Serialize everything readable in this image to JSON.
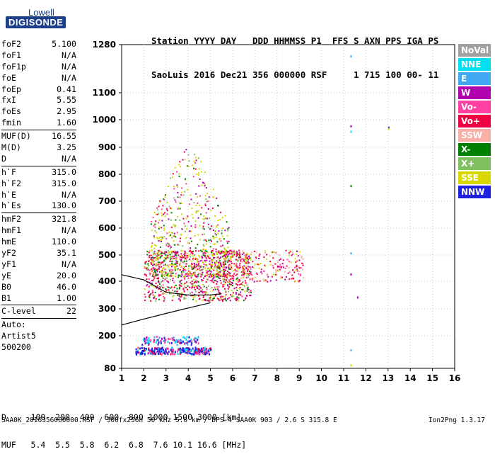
{
  "logo": {
    "line1": "Lowell",
    "line2": "DIGISONDE"
  },
  "header": {
    "line1": "Station YYYY DAY   DDD HHMMSS P1  FFS S AXN PPS IGA PS",
    "line2": "SaoLuis 2016 Dec21 356 000000 RSF     1 715 100 00- 11"
  },
  "params": {
    "group1": [
      {
        "k": "foF2",
        "v": "5.100"
      },
      {
        "k": "foF1",
        "v": "N/A"
      },
      {
        "k": "foF1p",
        "v": "N/A"
      },
      {
        "k": "foE",
        "v": "N/A"
      },
      {
        "k": "foEp",
        "v": "0.41"
      },
      {
        "k": "fxI",
        "v": "5.55"
      },
      {
        "k": "foEs",
        "v": "2.95"
      },
      {
        "k": "fmin",
        "v": "1.60"
      }
    ],
    "group2": [
      {
        "k": "MUF(D)",
        "v": "16.55"
      },
      {
        "k": "M(D)",
        "v": "3.25"
      },
      {
        "k": "D",
        "v": "N/A"
      }
    ],
    "group3": [
      {
        "k": "h`F",
        "v": "315.0"
      },
      {
        "k": "h`F2",
        "v": "315.0"
      },
      {
        "k": "h`E",
        "v": "N/A"
      },
      {
        "k": "h`Es",
        "v": "130.0"
      }
    ],
    "group4": [
      {
        "k": "hmF2",
        "v": "321.8"
      },
      {
        "k": "hmF1",
        "v": "N/A"
      },
      {
        "k": "hmE",
        "v": "110.0"
      },
      {
        "k": "yF2",
        "v": "35.1"
      },
      {
        "k": "yF1",
        "v": "N/A"
      },
      {
        "k": "yE",
        "v": "20.0"
      },
      {
        "k": "B0",
        "v": "46.0"
      },
      {
        "k": "B1",
        "v": "1.00"
      }
    ],
    "group5": [
      {
        "k": "C-level",
        "v": "22"
      }
    ],
    "group6": [
      "Auto:",
      "Artist5",
      "500200"
    ]
  },
  "legend": [
    {
      "label": "NoVal",
      "color": "#a0a0a0"
    },
    {
      "label": "NNE",
      "color": "#00e0f0"
    },
    {
      "label": "E",
      "color": "#40a8f0"
    },
    {
      "label": "W",
      "color": "#b000b0"
    },
    {
      "label": "Vo-",
      "color": "#ff40a0"
    },
    {
      "label": "Vo+",
      "color": "#f00040"
    },
    {
      "label": "SSW",
      "color": "#f8b0a8"
    },
    {
      "label": "X-",
      "color": "#008000"
    },
    {
      "label": "X+",
      "color": "#80c060"
    },
    {
      "label": "SSE",
      "color": "#d8d800"
    },
    {
      "label": "NNW",
      "color": "#2020e0"
    }
  ],
  "footer": {
    "line1": "D     100  200  400  600  800 1000 1500 3000 [km]",
    "line2": "MUF   5.4  5.5  5.8  6.2  6.8  7.6 10.1 16.6 [MHz]",
    "source": "SAA0K_2016356000000.RSF / 300fx256h 50 kHz 5.0 km / DPS-4 SAA0K 903 / 2.6 S 315.8 E",
    "version": "Ion2Png 1.3.17"
  },
  "chart_data": {
    "type": "scatter",
    "xlim": [
      1,
      16
    ],
    "x_ticks": [
      1,
      2,
      3,
      4,
      5,
      6,
      7,
      8,
      9,
      10,
      11,
      12,
      13,
      14,
      15,
      16
    ],
    "ylim": [
      80,
      1300
    ],
    "y_ticks": [
      80,
      200,
      300,
      400,
      500,
      600,
      700,
      800,
      900,
      1000,
      1100,
      1280
    ],
    "grid": "dotted",
    "clusters": [
      {
        "name": "Es-echoes",
        "color": "#2020e0",
        "x_range": [
          1.6,
          5.0
        ],
        "y_range": [
          135,
          160
        ]
      },
      {
        "name": "Es-echoes-upper",
        "color": "#b000b0",
        "x_range": [
          1.9,
          4.5
        ],
        "y_range": [
          170,
          200
        ]
      },
      {
        "name": "F-O-trace",
        "color": "#f00040",
        "x_range": [
          2.0,
          6.8
        ],
        "y_range": [
          330,
          520
        ]
      },
      {
        "name": "F-spread",
        "color": "#d8d800",
        "x_range": [
          2.3,
          5.8
        ],
        "y_range": [
          420,
          950
        ]
      },
      {
        "name": "F-X-trace",
        "color": "#ff40a0",
        "x_range": [
          5.3,
          9.2
        ],
        "y_range": [
          400,
          520
        ]
      }
    ],
    "traces": [
      {
        "name": "profile",
        "points": [
          [
            1,
            240
          ],
          [
            2,
            262
          ],
          [
            3,
            283
          ],
          [
            4,
            303
          ],
          [
            5,
            322
          ]
        ]
      },
      {
        "name": "trace",
        "points": [
          [
            1,
            425
          ],
          [
            2,
            405
          ],
          [
            3,
            360
          ],
          [
            4,
            350
          ],
          [
            5,
            350
          ],
          [
            5.5,
            355
          ]
        ]
      }
    ]
  }
}
